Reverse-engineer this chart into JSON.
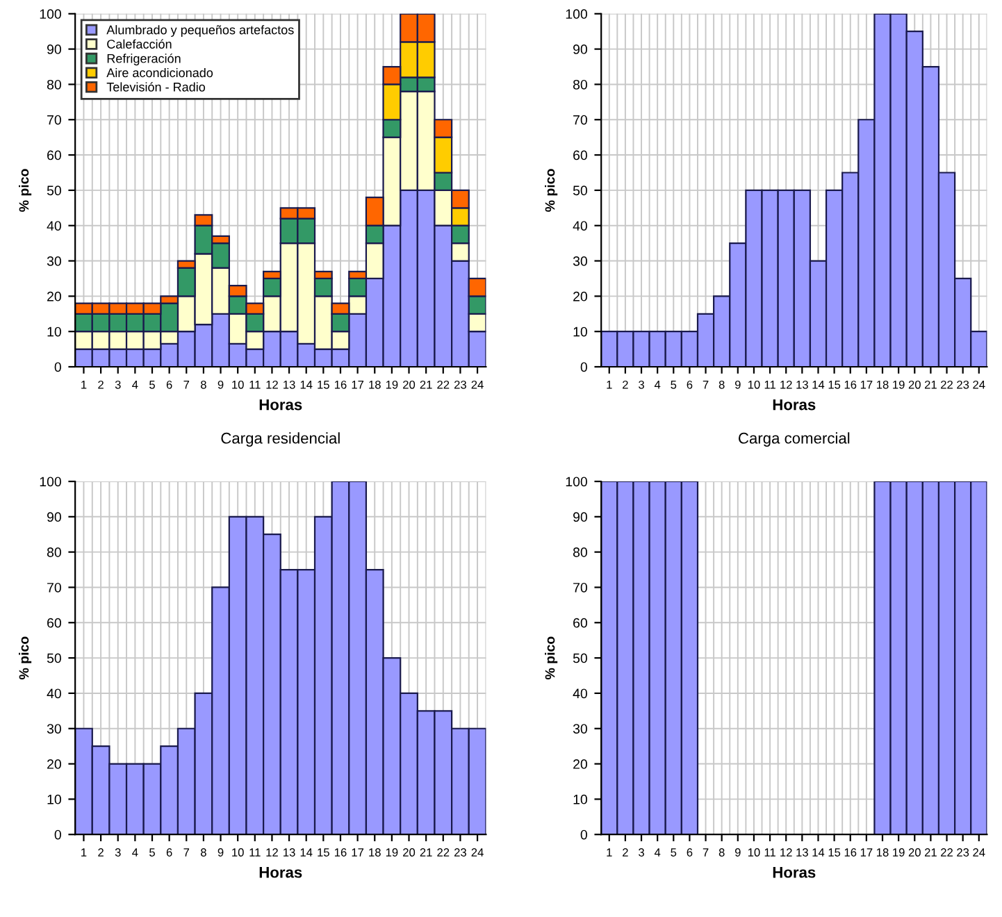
{
  "chart_data": [
    {
      "type": "bar",
      "title": "Carga residencial",
      "xlabel": "Horas",
      "ylabel": "% pico",
      "stacked": true,
      "legend": "top left",
      "grid": true,
      "categories": [
        "1",
        "2",
        "3",
        "4",
        "5",
        "6",
        "7",
        "8",
        "9",
        "10",
        "11",
        "12",
        "13",
        "14",
        "15",
        "16",
        "17",
        "18",
        "19",
        "20",
        "21",
        "22",
        "23",
        "24"
      ],
      "ylim": [
        0,
        100
      ],
      "yticks": [
        0,
        10,
        20,
        30,
        40,
        50,
        60,
        70,
        80,
        90,
        100
      ],
      "series": [
        {
          "name": "Alumbrado y pequeños artefactos",
          "color": "#9999ff",
          "values": [
            5,
            5,
            5,
            5,
            5,
            6.5,
            10,
            12,
            15,
            6.5,
            5,
            10,
            10,
            6.5,
            5,
            5,
            15,
            25,
            40,
            50,
            50,
            40,
            30,
            10
          ]
        },
        {
          "name": "Calefacción",
          "color": "#ffffcc",
          "values": [
            5,
            5,
            5,
            5,
            5,
            3.5,
            10,
            20,
            13,
            8.5,
            5,
            10,
            25,
            28.5,
            15,
            5,
            5,
            10,
            25,
            28,
            28,
            10,
            5,
            5
          ]
        },
        {
          "name": "Refrigeración",
          "color": "#339966",
          "values": [
            5,
            5,
            5,
            5,
            5,
            8,
            8,
            8,
            7,
            5,
            5,
            5,
            7,
            7,
            5,
            5,
            5,
            5,
            5,
            4,
            4,
            5,
            5,
            5
          ]
        },
        {
          "name": "Aire acondicionado",
          "color": "#ffcc00",
          "values": [
            0,
            0,
            0,
            0,
            0,
            0,
            0,
            0,
            0,
            0,
            0,
            0,
            0,
            0,
            0,
            0,
            0,
            0,
            10,
            10,
            10,
            10,
            5,
            0
          ]
        },
        {
          "name": "Televisión - Radio",
          "color": "#ff6600",
          "values": [
            3,
            3,
            3,
            3,
            3,
            2,
            2,
            3,
            2,
            3,
            3,
            2,
            3,
            3,
            2,
            3,
            2,
            8,
            5,
            8,
            8,
            5,
            5,
            5
          ]
        }
      ]
    },
    {
      "type": "bar",
      "title": "Carga comercial",
      "xlabel": "Horas",
      "ylabel": "% pico",
      "grid": true,
      "categories": [
        "1",
        "2",
        "3",
        "4",
        "5",
        "6",
        "7",
        "8",
        "9",
        "10",
        "11",
        "12",
        "13",
        "14",
        "15",
        "16",
        "17",
        "18",
        "19",
        "20",
        "21",
        "22",
        "23",
        "24"
      ],
      "ylim": [
        0,
        100
      ],
      "yticks": [
        0,
        10,
        20,
        30,
        40,
        50,
        60,
        70,
        80,
        90,
        100
      ],
      "series": [
        {
          "color": "#9999ff",
          "values": [
            10,
            10,
            10,
            10,
            10,
            10,
            15,
            20,
            35,
            50,
            50,
            50,
            50,
            30,
            50,
            55,
            70,
            100,
            100,
            95,
            85,
            55,
            25,
            10
          ]
        }
      ]
    },
    {
      "type": "bar",
      "xlabel": "Horas",
      "ylabel": "% pico",
      "grid": true,
      "categories": [
        "1",
        "2",
        "3",
        "4",
        "5",
        "6",
        "7",
        "8",
        "9",
        "10",
        "11",
        "12",
        "13",
        "14",
        "15",
        "16",
        "17",
        "18",
        "19",
        "20",
        "21",
        "22",
        "23",
        "24"
      ],
      "ylim": [
        0,
        100
      ],
      "yticks": [
        0,
        10,
        20,
        30,
        40,
        50,
        60,
        70,
        80,
        90,
        100
      ],
      "series": [
        {
          "color": "#9999ff",
          "values": [
            30,
            25,
            20,
            20,
            20,
            25,
            30,
            40,
            70,
            90,
            90,
            85,
            75,
            75,
            90,
            100,
            100,
            75,
            50,
            40,
            35,
            35,
            30,
            30
          ]
        }
      ]
    },
    {
      "type": "bar",
      "xlabel": "Horas",
      "ylabel": "% pico",
      "grid": true,
      "categories": [
        "1",
        "2",
        "3",
        "4",
        "5",
        "6",
        "7",
        "8",
        "9",
        "10",
        "11",
        "12",
        "13",
        "14",
        "15",
        "16",
        "17",
        "18",
        "19",
        "20",
        "21",
        "22",
        "23",
        "24"
      ],
      "ylim": [
        0,
        100
      ],
      "yticks": [
        0,
        10,
        20,
        30,
        40,
        50,
        60,
        70,
        80,
        90,
        100
      ],
      "series": [
        {
          "color": "#9999ff",
          "values": [
            100,
            100,
            100,
            100,
            100,
            100,
            0,
            0,
            0,
            0,
            0,
            0,
            0,
            0,
            0,
            0,
            0,
            100,
            100,
            100,
            100,
            100,
            100,
            100
          ]
        }
      ]
    }
  ]
}
